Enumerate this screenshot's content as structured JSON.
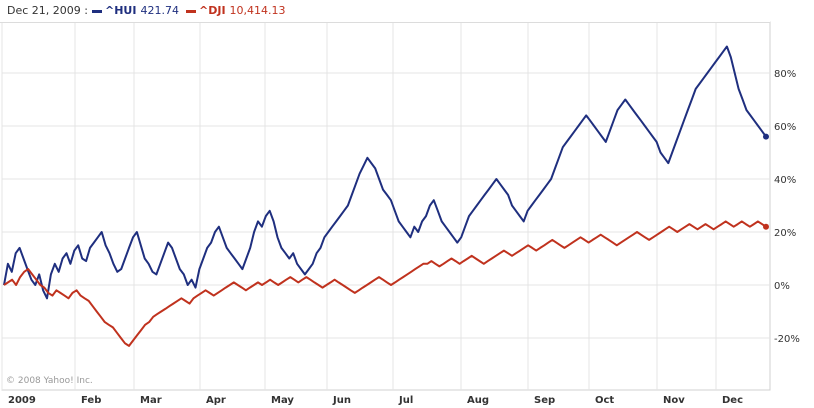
{
  "legend": {
    "date": "Dec 21, 2009 :",
    "items": [
      {
        "label": "^HUI",
        "value": "421.74",
        "color": "#1f2f7f"
      },
      {
        "label": "^DJI",
        "value": "10,414.13",
        "color": "#c0321e"
      }
    ]
  },
  "copyright": "© 2008 Yahoo! Inc.",
  "chart_data": {
    "type": "line",
    "title": "",
    "xlabel": "",
    "ylabel": "",
    "ylim": [
      -40,
      100
    ],
    "grid": true,
    "legend_position": "top-left",
    "x_labels": [
      "2009",
      "Feb",
      "Mar",
      "Apr",
      "May",
      "Jun",
      "Jul",
      "Aug",
      "Sep",
      "Oct",
      "Nov",
      "Dec"
    ],
    "y_ticks": [
      {
        "value": 80,
        "label": "80%"
      },
      {
        "value": 60,
        "label": "60%"
      },
      {
        "value": 40,
        "label": "40%"
      },
      {
        "value": 20,
        "label": "20%"
      },
      {
        "value": 0,
        "label": "0%"
      },
      {
        "value": -20,
        "label": "-20%"
      }
    ],
    "series": [
      {
        "name": "^HUI",
        "color": "#1f2f7f",
        "values": [
          0,
          8,
          5,
          12,
          14,
          10,
          6,
          2,
          0,
          4,
          -2,
          -5,
          4,
          8,
          5,
          10,
          12,
          8,
          13,
          15,
          10,
          9,
          14,
          16,
          18,
          20,
          15,
          12,
          8,
          5,
          6,
          10,
          14,
          18,
          20,
          15,
          10,
          8,
          5,
          4,
          8,
          12,
          16,
          14,
          10,
          6,
          4,
          0,
          2,
          -1,
          6,
          10,
          14,
          16,
          20,
          22,
          18,
          14,
          12,
          10,
          8,
          6,
          10,
          14,
          20,
          24,
          22,
          26,
          28,
          24,
          18,
          14,
          12,
          10,
          12,
          8,
          6,
          4,
          6,
          8,
          12,
          14,
          18,
          20,
          22,
          24,
          26,
          28,
          30,
          34,
          38,
          42,
          45,
          48,
          46,
          44,
          40,
          36,
          34,
          32,
          28,
          24,
          22,
          20,
          18,
          22,
          20,
          24,
          26,
          30,
          32,
          28,
          24,
          22,
          20,
          18,
          16,
          18,
          22,
          26,
          28,
          30,
          32,
          34,
          36,
          38,
          40,
          38,
          36,
          34,
          30,
          28,
          26,
          24,
          28,
          30,
          32,
          34,
          36,
          38,
          40,
          44,
          48,
          52,
          54,
          56,
          58,
          60,
          62,
          64,
          62,
          60,
          58,
          56,
          54,
          58,
          62,
          66,
          68,
          70,
          68,
          66,
          64,
          62,
          60,
          58,
          56,
          54,
          50,
          48,
          46,
          50,
          54,
          58,
          62,
          66,
          70,
          74,
          76,
          78,
          80,
          82,
          84,
          86,
          88,
          90,
          86,
          80,
          74,
          70,
          66,
          64,
          62,
          60,
          58,
          56
        ]
      },
      {
        "name": "^DJI",
        "color": "#c0321e",
        "values": [
          0,
          1,
          2,
          0,
          3,
          5,
          6,
          4,
          2,
          0,
          -1,
          -3,
          -4,
          -2,
          -3,
          -4,
          -5,
          -3,
          -2,
          -4,
          -5,
          -6,
          -8,
          -10,
          -12,
          -14,
          -15,
          -16,
          -18,
          -20,
          -22,
          -23,
          -21,
          -19,
          -17,
          -15,
          -14,
          -12,
          -11,
          -10,
          -9,
          -8,
          -7,
          -6,
          -5,
          -6,
          -7,
          -5,
          -4,
          -3,
          -2,
          -3,
          -4,
          -3,
          -2,
          -1,
          0,
          1,
          0,
          -1,
          -2,
          -1,
          0,
          1,
          0,
          1,
          2,
          1,
          0,
          1,
          2,
          3,
          2,
          1,
          2,
          3,
          2,
          1,
          0,
          -1,
          0,
          1,
          2,
          1,
          0,
          -1,
          -2,
          -3,
          -2,
          -1,
          0,
          1,
          2,
          3,
          2,
          1,
          0,
          1,
          2,
          3,
          4,
          5,
          6,
          7,
          8,
          8,
          9,
          8,
          7,
          8,
          9,
          10,
          9,
          8,
          9,
          10,
          11,
          10,
          9,
          8,
          9,
          10,
          11,
          12,
          13,
          12,
          11,
          12,
          13,
          14,
          15,
          14,
          13,
          14,
          15,
          16,
          17,
          16,
          15,
          14,
          15,
          16,
          17,
          18,
          17,
          16,
          17,
          18,
          19,
          18,
          17,
          16,
          15,
          16,
          17,
          18,
          19,
          20,
          19,
          18,
          17,
          18,
          19,
          20,
          21,
          22,
          21,
          20,
          21,
          22,
          23,
          22,
          21,
          22,
          23,
          22,
          21,
          22,
          23,
          24,
          23,
          22,
          23,
          24,
          23,
          22,
          23,
          24,
          23,
          22
        ]
      }
    ]
  }
}
